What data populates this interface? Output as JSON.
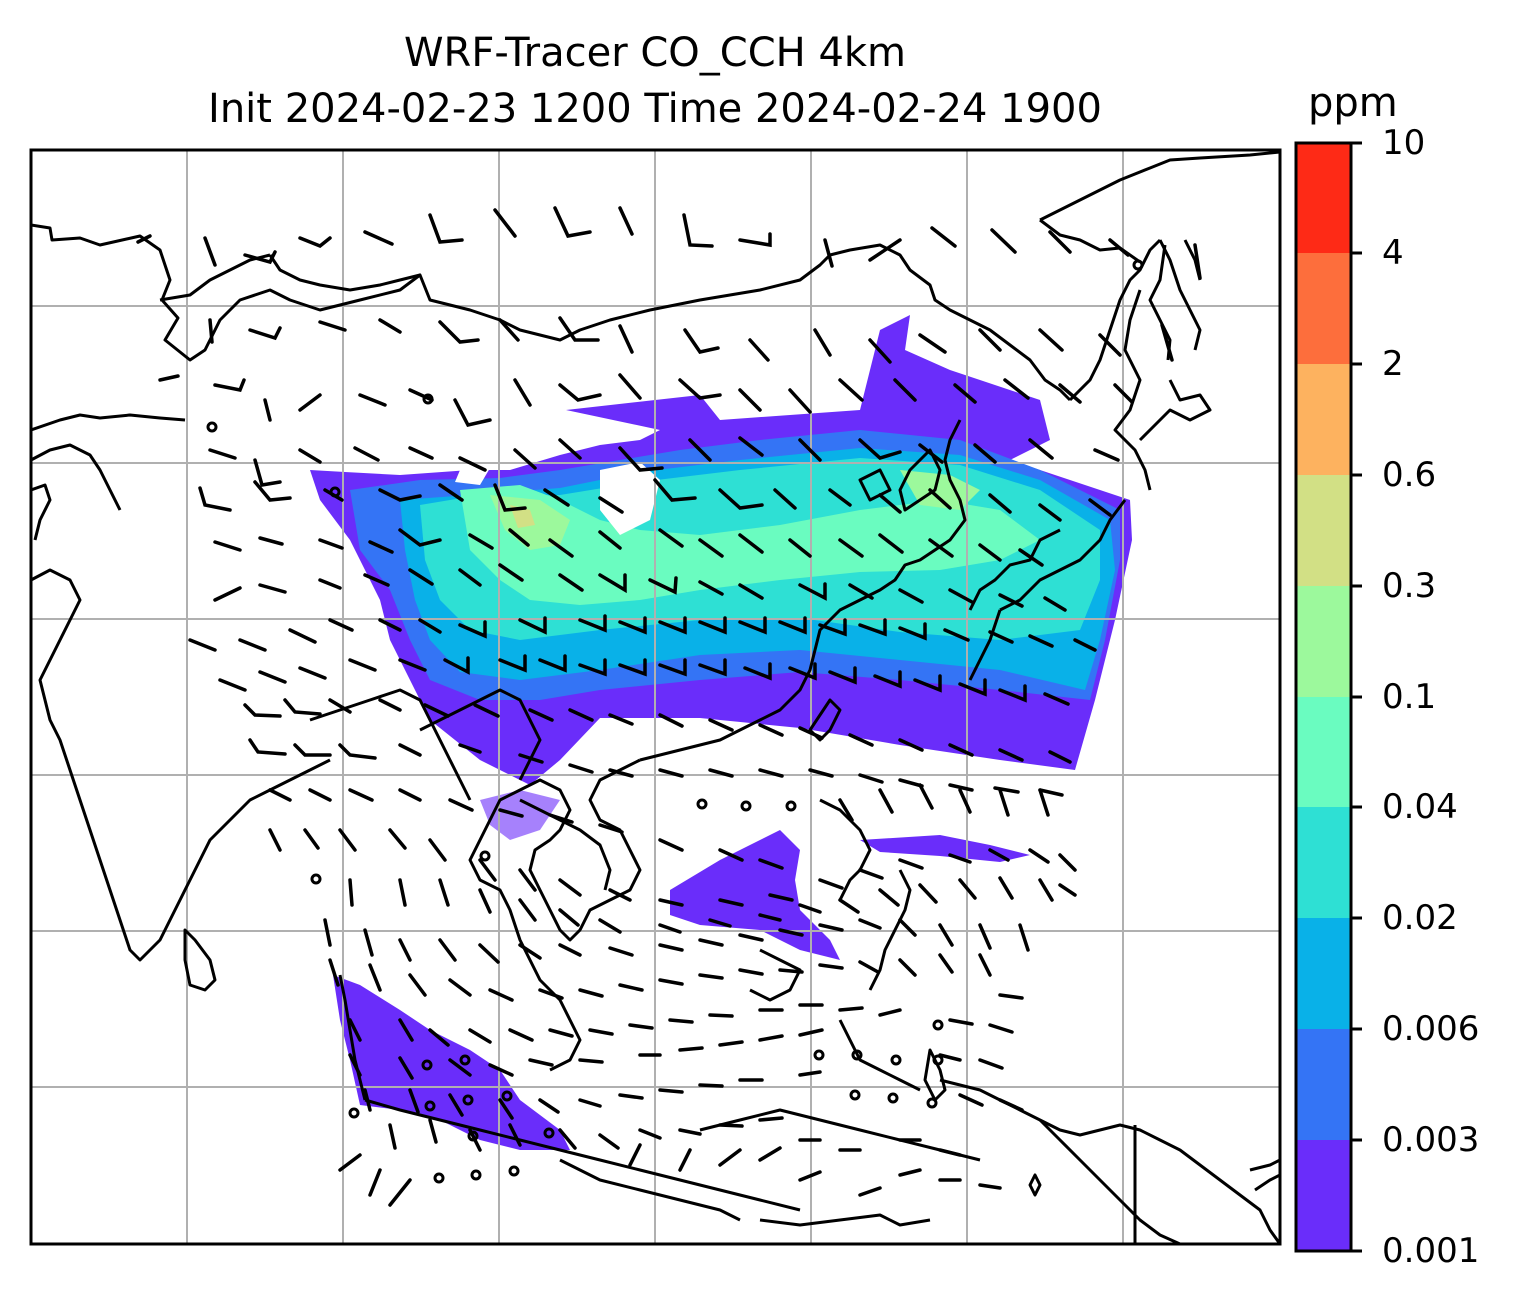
{
  "title": {
    "line1": "WRF-Tracer CO_CCH 4km",
    "line2": "Init 2024-02-23 1200 Time 2024-02-24 1900"
  },
  "chart_data": {
    "type": "heatmap",
    "title": "WRF-Tracer CO_CCH 4km",
    "subtitle": "Init 2024-02-23 1200 Time 2024-02-24 1900",
    "grid": true,
    "colorbar": {
      "label": "ppm",
      "position": "right",
      "levels": [
        "0.001",
        "0.003",
        "0.006",
        "0.02",
        "0.04",
        "0.1",
        "0.3",
        "0.6",
        "2",
        "4",
        "10"
      ],
      "colors": [
        "#6a2dfa",
        "#3474f5",
        "#09b1e8",
        "#2ee0d4",
        "#6afcc0",
        "#9cf99c",
        "#d2e085",
        "#fdb25f",
        "#fd6e3c",
        "#fe2a16"
      ]
    },
    "overlays": [
      "coastlines",
      "country borders",
      "wind barbs"
    ]
  },
  "colors": {
    "frame": "#000000",
    "grid": "#b0b0b0",
    "coast": "#000000"
  }
}
